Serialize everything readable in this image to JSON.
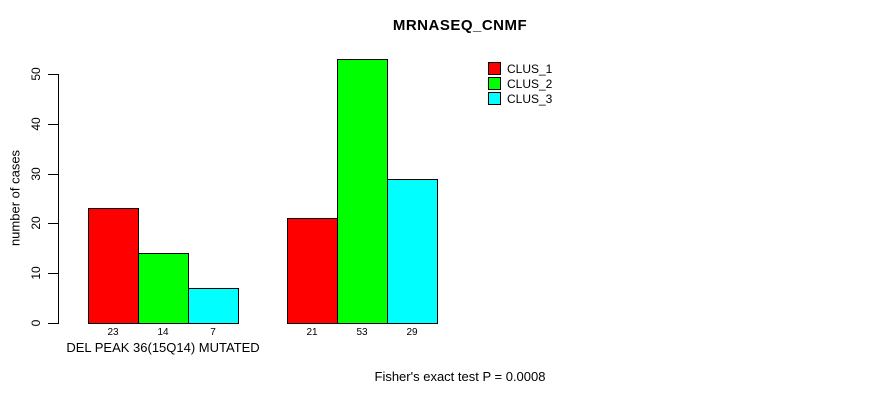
{
  "figure": {
    "title": "MRNASEQ_CNMF",
    "footer": "Fisher's exact test P = 0.0008"
  },
  "chart_data": {
    "type": "bar",
    "title": "MRNASEQ_CNMF",
    "ylabel": "number of cases",
    "xlabel": "",
    "ylim": [
      0,
      50
    ],
    "yticks": [
      0,
      10,
      20,
      30,
      40,
      50
    ],
    "grid": false,
    "legend_position": "top-right",
    "categories": [
      "DEL PEAK 36(15Q14) MUTATED",
      ""
    ],
    "series": [
      {
        "name": "CLUS_1",
        "color": "#ff0000",
        "values": [
          23,
          21
        ]
      },
      {
        "name": "CLUS_2",
        "color": "#00ff00",
        "values": [
          14,
          53
        ]
      },
      {
        "name": "CLUS_3",
        "color": "#00ffff",
        "values": [
          7,
          29
        ]
      }
    ],
    "bar_value_labels": [
      [
        "23",
        "14",
        "7"
      ],
      [
        "21",
        "53",
        "29"
      ]
    ],
    "annotation": "Fisher's exact test P = 0.0008"
  }
}
